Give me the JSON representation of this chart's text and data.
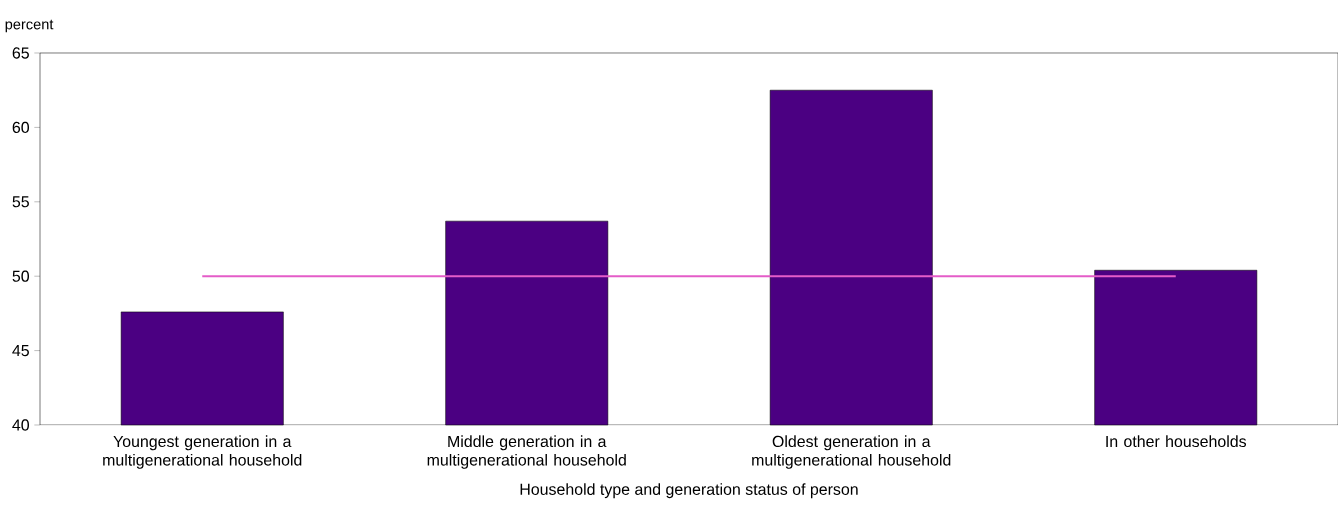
{
  "chart_data": {
    "type": "bar",
    "ylabel": "percent",
    "xlabel": "Household type and generation status of person",
    "categories": [
      "Youngest generation in a multigenerational household",
      "Middle generation in a multigenerational household",
      "Oldest generation in a multigenerational household",
      "In other households"
    ],
    "series": [
      {
        "color": "#4b0082",
        "values": [
          47.6,
          53.7,
          62.5,
          50.4
        ]
      },
      {
        "type": "line",
        "color": "#e45cc8",
        "values": [
          50,
          50,
          50,
          50
        ]
      }
    ],
    "ylim": [
      40,
      65
    ],
    "yticks": [
      40,
      45,
      50,
      55,
      60,
      65
    ]
  }
}
